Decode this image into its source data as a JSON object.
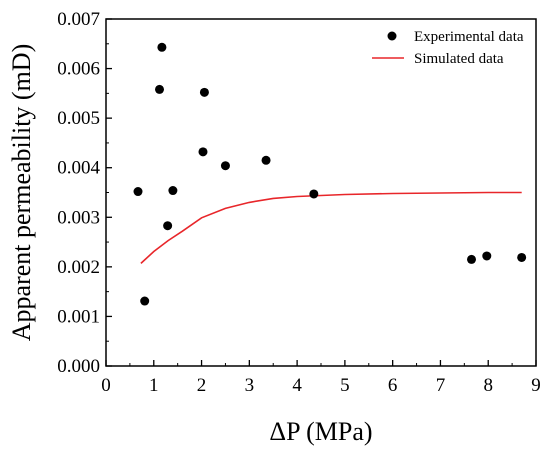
{
  "chart_data": {
    "type": "scatter",
    "title": "",
    "xlabel": "ΔP (MPa)",
    "ylabel": "Apparent permeability (mD)",
    "xlim": [
      0,
      9
    ],
    "ylim": [
      0,
      0.007
    ],
    "x_ticks": [
      0,
      1,
      2,
      3,
      4,
      5,
      6,
      7,
      8,
      9
    ],
    "y_ticks": [
      0.0,
      0.001,
      0.002,
      0.003,
      0.004,
      0.005,
      0.006,
      0.007
    ],
    "x_tick_labels": [
      "0",
      "1",
      "2",
      "3",
      "4",
      "5",
      "6",
      "7",
      "8",
      "9"
    ],
    "y_tick_labels": [
      "0.000",
      "0.001",
      "0.002",
      "0.003",
      "0.004",
      "0.005",
      "0.006",
      "0.007"
    ],
    "grid": false,
    "legend_position": "top-right",
    "series": [
      {
        "name": "Experimental data",
        "type": "scatter",
        "color": "#000000",
        "points": [
          {
            "x": 0.67,
            "y": 0.00352
          },
          {
            "x": 0.81,
            "y": 0.00131
          },
          {
            "x": 1.12,
            "y": 0.00558
          },
          {
            "x": 1.17,
            "y": 0.00643
          },
          {
            "x": 1.29,
            "y": 0.00283
          },
          {
            "x": 1.4,
            "y": 0.00354
          },
          {
            "x": 2.03,
            "y": 0.00432
          },
          {
            "x": 2.06,
            "y": 0.00552
          },
          {
            "x": 2.5,
            "y": 0.00404
          },
          {
            "x": 3.35,
            "y": 0.00415
          },
          {
            "x": 4.35,
            "y": 0.00347
          },
          {
            "x": 7.65,
            "y": 0.00215
          },
          {
            "x": 7.97,
            "y": 0.00222
          },
          {
            "x": 8.7,
            "y": 0.00219
          }
        ]
      },
      {
        "name": "Simulated data",
        "type": "line",
        "color": "#e8262a",
        "points": [
          {
            "x": 0.73,
            "y": 0.00207
          },
          {
            "x": 1.0,
            "y": 0.00231
          },
          {
            "x": 1.3,
            "y": 0.00253
          },
          {
            "x": 1.6,
            "y": 0.00272
          },
          {
            "x": 2.0,
            "y": 0.00299
          },
          {
            "x": 2.5,
            "y": 0.00318
          },
          {
            "x": 3.0,
            "y": 0.0033
          },
          {
            "x": 3.5,
            "y": 0.00338
          },
          {
            "x": 4.0,
            "y": 0.00342
          },
          {
            "x": 5.0,
            "y": 0.00346
          },
          {
            "x": 6.0,
            "y": 0.00348
          },
          {
            "x": 7.0,
            "y": 0.00349
          },
          {
            "x": 8.0,
            "y": 0.0035
          },
          {
            "x": 8.7,
            "y": 0.0035
          }
        ]
      }
    ]
  }
}
